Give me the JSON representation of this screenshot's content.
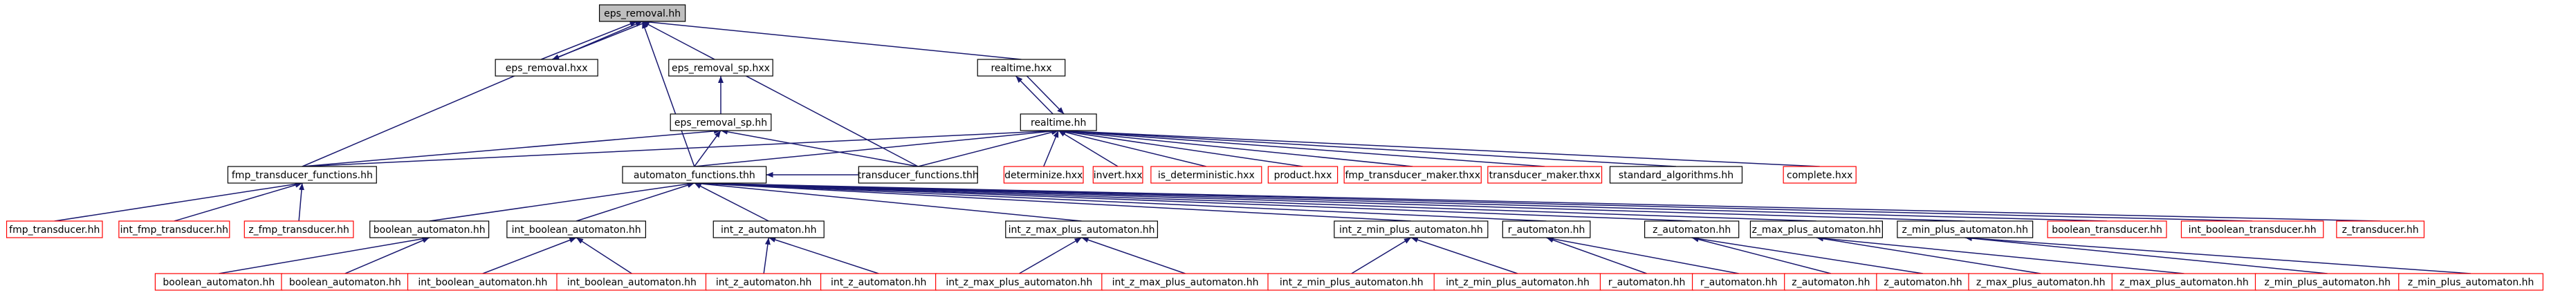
{
  "nodes": [
    {
      "label": "eps_removal.hh"
    },
    {
      "label": "eps_removal.hxx"
    },
    {
      "label": "eps_removal_sp.hxx"
    },
    {
      "label": "realtime.hxx"
    },
    {
      "label": "eps_removal_sp.hh"
    },
    {
      "label": "realtime.hh"
    },
    {
      "label": "fmp_transducer_functions.hh"
    },
    {
      "label": "automaton_functions.thh"
    },
    {
      "label": "transducer_functions.thh"
    },
    {
      "label": "determinize.hxx"
    },
    {
      "label": "invert.hxx"
    },
    {
      "label": "is_deterministic.hxx"
    },
    {
      "label": "product.hxx"
    },
    {
      "label": "fmp_transducer_maker.thxx"
    },
    {
      "label": "transducer_maker.thxx"
    },
    {
      "label": "standard_algorithms.hh"
    },
    {
      "label": "complete.hxx"
    },
    {
      "label": "fmp_transducer.hh"
    },
    {
      "label": "int_fmp_transducer.hh"
    },
    {
      "label": "z_fmp_transducer.hh"
    },
    {
      "label": "boolean_automaton.hh"
    },
    {
      "label": "int_boolean_automaton.hh"
    },
    {
      "label": "int_z_automaton.hh"
    },
    {
      "label": "int_z_max_plus_automaton.hh"
    },
    {
      "label": "int_z_min_plus_automaton.hh"
    },
    {
      "label": "r_automaton.hh"
    },
    {
      "label": "z_automaton.hh"
    },
    {
      "label": "z_max_plus_automaton.hh"
    },
    {
      "label": "z_min_plus_automaton.hh"
    },
    {
      "label": "boolean_transducer.hh"
    },
    {
      "label": "int_boolean_transducer.hh"
    },
    {
      "label": "z_transducer.hh"
    },
    {
      "label": "boolean_automaton.hh"
    },
    {
      "label": "boolean_automaton.hh"
    },
    {
      "label": "int_boolean_automaton.hh"
    },
    {
      "label": "int_boolean_automaton.hh"
    },
    {
      "label": "int_z_automaton.hh"
    },
    {
      "label": "int_z_automaton.hh"
    },
    {
      "label": "int_z_max_plus_automaton.hh"
    },
    {
      "label": "int_z_max_plus_automaton.hh"
    },
    {
      "label": "int_z_min_plus_automaton.hh"
    },
    {
      "label": "int_z_min_plus_automaton.hh"
    },
    {
      "label": "r_automaton.hh"
    },
    {
      "label": "r_automaton.hh"
    },
    {
      "label": "z_automaton.hh"
    },
    {
      "label": "z_automaton.hh"
    },
    {
      "label": "z_max_plus_automaton.hh"
    },
    {
      "label": "z_max_plus_automaton.hh"
    },
    {
      "label": "z_min_plus_automaton.hh"
    },
    {
      "label": "z_min_plus_automaton.hh"
    }
  ]
}
